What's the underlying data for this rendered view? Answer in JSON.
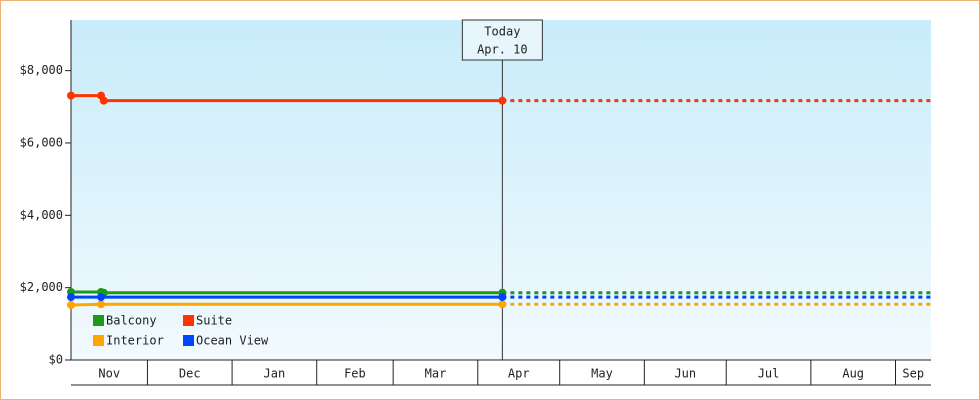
{
  "chart_data": {
    "type": "line",
    "annotation": {
      "title": "Today",
      "date": "Apr. 10",
      "x": 160
    },
    "xlim": [
      2,
      317
    ],
    "xticks": [
      {
        "value": 0,
        "label": "Nov"
      },
      {
        "value": 30,
        "label": "Dec"
      },
      {
        "value": 61,
        "label": "Jan"
      },
      {
        "value": 92,
        "label": "Feb"
      },
      {
        "value": 120,
        "label": "Mar"
      },
      {
        "value": 151,
        "label": "Apr"
      },
      {
        "value": 181,
        "label": "May"
      },
      {
        "value": 212,
        "label": "Jun"
      },
      {
        "value": 242,
        "label": "Jul"
      },
      {
        "value": 273,
        "label": "Aug"
      },
      {
        "value": 304,
        "label": "Sep"
      }
    ],
    "ylim": [
      0,
      9400
    ],
    "yticks": [
      {
        "value": 0,
        "label": "$0"
      },
      {
        "value": 2000,
        "label": "$2,000"
      },
      {
        "value": 4000,
        "label": "$4,000"
      },
      {
        "value": 6000,
        "label": "$6,000"
      },
      {
        "value": 8000,
        "label": "$8,000"
      }
    ],
    "legend": "lower-left",
    "series": [
      {
        "name": "Balcony",
        "color": "#1a9a1a",
        "x": [
          2,
          13,
          14,
          160
        ],
        "y": [
          1880,
          1880,
          1860,
          1860
        ]
      },
      {
        "name": "Suite",
        "color": "#ff3300",
        "x": [
          2,
          13,
          14,
          160
        ],
        "y": [
          7310,
          7310,
          7170,
          7170
        ]
      },
      {
        "name": "Interior",
        "color": "#ffa500",
        "x": [
          2,
          13,
          160
        ],
        "y": [
          1520,
          1540,
          1540
        ]
      },
      {
        "name": "Ocean View",
        "color": "#0044ff",
        "x": [
          2,
          13,
          160
        ],
        "y": [
          1740,
          1740,
          1740
        ]
      }
    ]
  }
}
